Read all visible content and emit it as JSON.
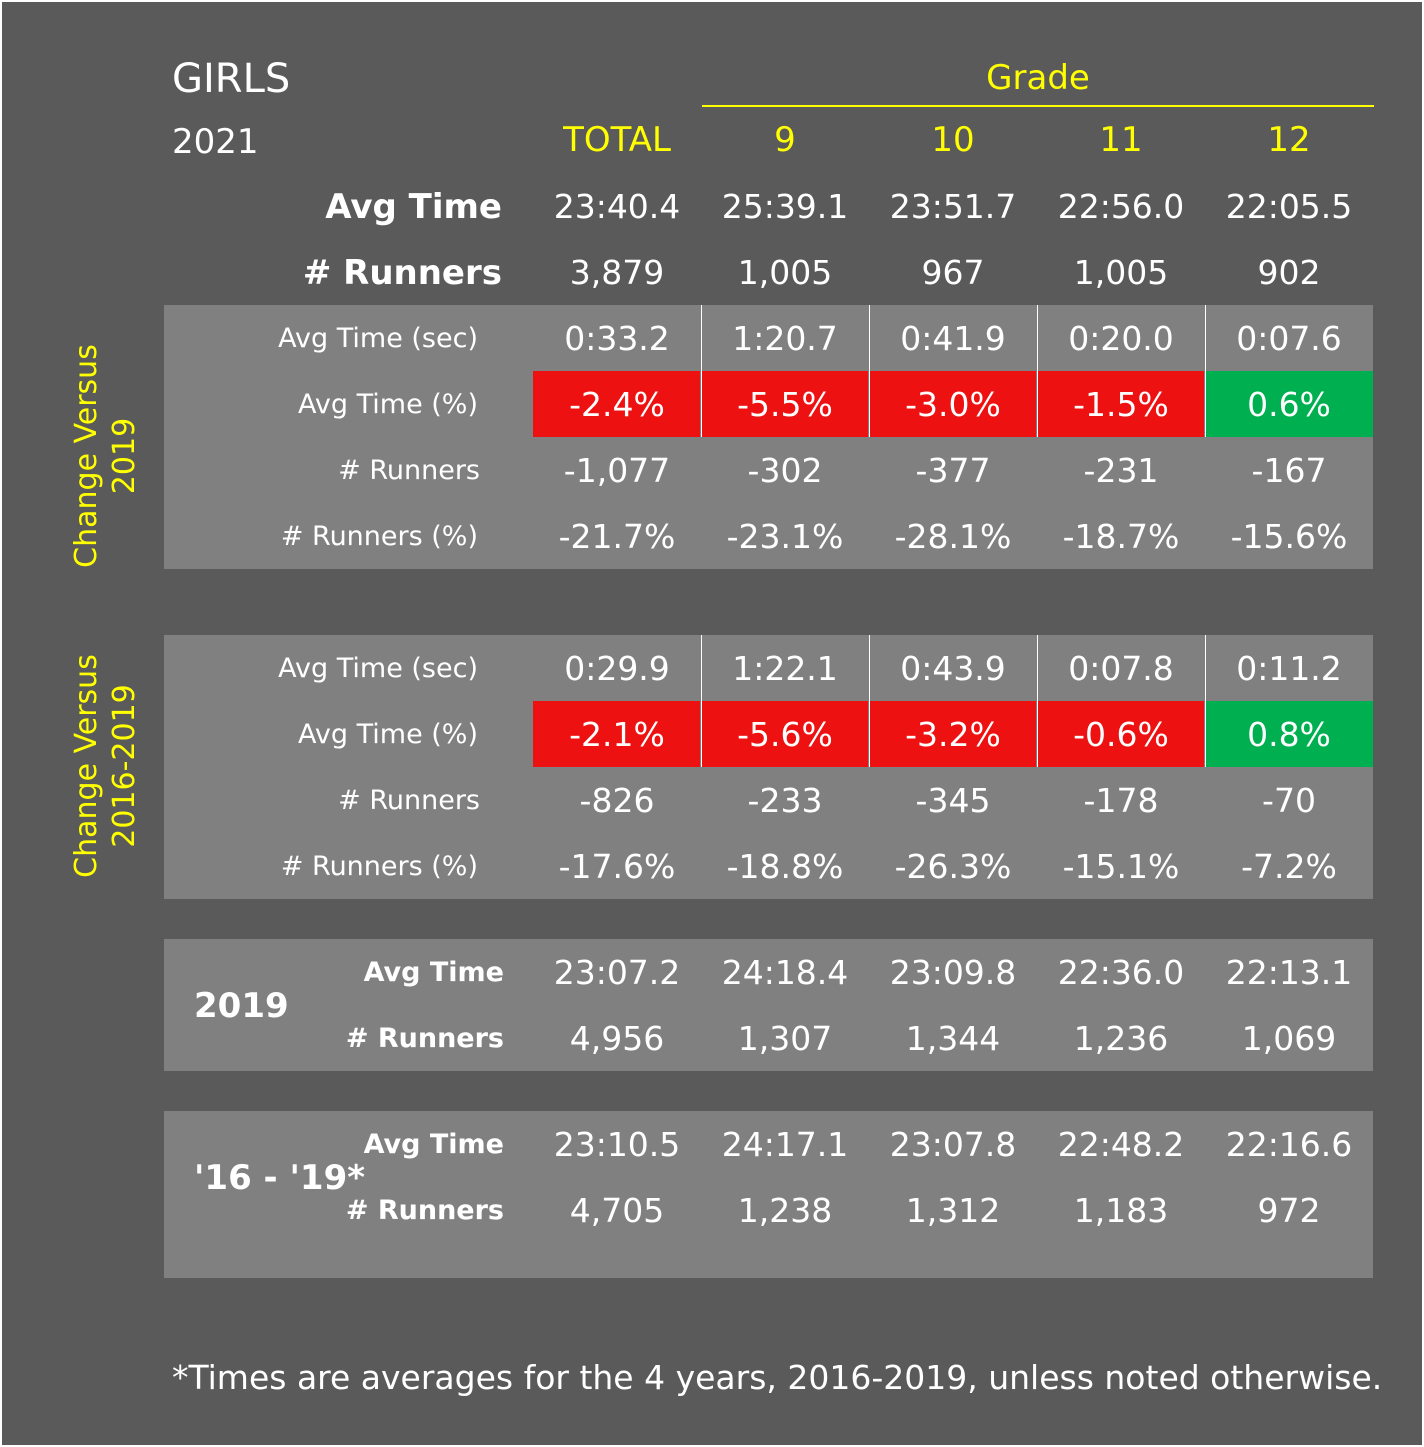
{
  "title": "GIRLS",
  "year": "2021",
  "grade_label": "Grade",
  "columns": [
    "TOTAL",
    "9",
    "10",
    "11",
    "12"
  ],
  "summary": {
    "avg_time_label": "Avg Time",
    "runners_label": "# Runners",
    "avg_time": [
      "23:40.4",
      "25:39.1",
      "23:51.7",
      "22:56.0",
      "22:05.5"
    ],
    "runners": [
      "3,879",
      "1,005",
      "967",
      "1,005",
      "902"
    ]
  },
  "vs2019": {
    "side_line1": "Change Versus",
    "side_line2": "2019",
    "labels": [
      "Avg Time (sec)",
      "Avg Time (%)",
      "# Runners",
      "# Runners (%)"
    ],
    "avg_time_sec": [
      "0:33.2",
      "1:20.7",
      "0:41.9",
      "0:20.0",
      "0:07.6"
    ],
    "avg_time_pct": [
      "-2.4%",
      "-5.5%",
      "-3.0%",
      "-1.5%",
      "0.6%"
    ],
    "runners": [
      "-1,077",
      "-302",
      "-377",
      "-231",
      "-167"
    ],
    "runners_pct": [
      "-21.7%",
      "-23.1%",
      "-28.1%",
      "-18.7%",
      "-15.6%"
    ]
  },
  "vs2016_2019": {
    "side_line1": "Change Versus",
    "side_line2": "2016-2019",
    "labels": [
      "Avg Time (sec)",
      "Avg Time (%)",
      "# Runners",
      "# Runners (%)"
    ],
    "avg_time_sec": [
      "0:29.9",
      "1:22.1",
      "0:43.9",
      "0:07.8",
      "0:11.2"
    ],
    "avg_time_pct": [
      "-2.1%",
      "-5.6%",
      "-3.2%",
      "-0.6%",
      "0.8%"
    ],
    "runners": [
      "-826",
      "-233",
      "-345",
      "-178",
      "-70"
    ],
    "runners_pct": [
      "-17.6%",
      "-18.8%",
      "-26.3%",
      "-15.1%",
      "-7.2%"
    ]
  },
  "y2019": {
    "label": "2019",
    "avg_time_label": "Avg Time",
    "runners_label": "# Runners",
    "avg_time": [
      "23:07.2",
      "24:18.4",
      "23:09.8",
      "22:36.0",
      "22:13.1"
    ],
    "runners": [
      "4,956",
      "1,307",
      "1,344",
      "1,236",
      "1,069"
    ]
  },
  "y16_19": {
    "label": "'16 - '19*",
    "avg_time_label": "Avg Time",
    "runners_label": "# Runners",
    "avg_time": [
      "23:10.5",
      "24:17.1",
      "23:07.8",
      "22:48.2",
      "22:16.6"
    ],
    "runners": [
      "4,705",
      "1,238",
      "1,312",
      "1,183",
      "972"
    ]
  },
  "colors": {
    "negative": "#ee1111",
    "positive": "#00b050",
    "accent": "#ffff00"
  },
  "footnote": "*Times are averages for the 4 years, 2016-2019, unless noted otherwise."
}
